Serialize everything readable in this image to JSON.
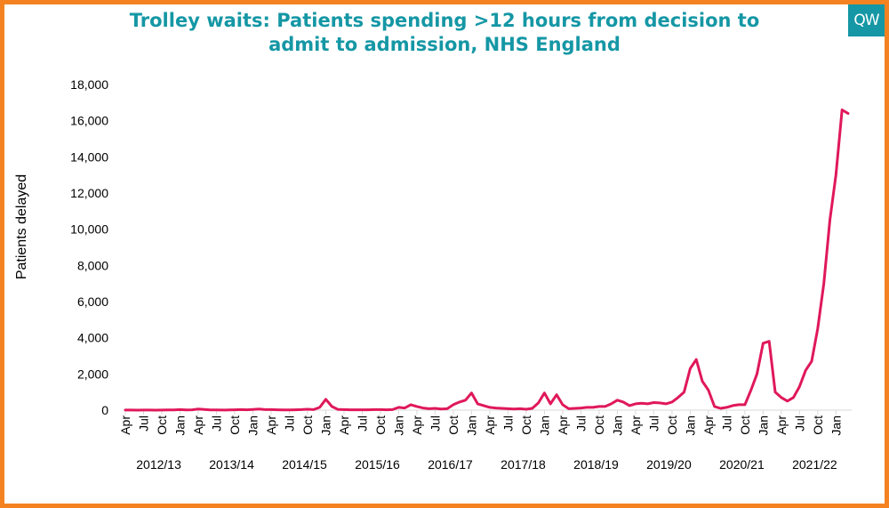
{
  "title_lines": [
    "Trolley waits: Patients spending >12 hours from decision to",
    "admit to admission, NHS England"
  ],
  "logo_text": "QW",
  "colors": {
    "frame": "#f58220",
    "title": "#1597a5",
    "line": "#e0185a",
    "logo_bg": "#1597a5"
  },
  "chart_data": {
    "type": "line",
    "title": "Trolley waits: Patients spending >12 hours from decision to admit to admission, NHS England",
    "ylabel": "Patients delayed",
    "xlabel": "",
    "ylim": [
      0,
      18000
    ],
    "yticks": [
      0,
      2000,
      4000,
      6000,
      8000,
      10000,
      12000,
      14000,
      16000,
      18000
    ],
    "ytick_labels": [
      "0",
      "2,000",
      "4,000",
      "6,000",
      "8,000",
      "10,000",
      "12,000",
      "14,000",
      "16,000",
      "18,000"
    ],
    "month_tick_labels": [
      "Apr",
      "Jul",
      "Oct",
      "Jan",
      "Apr",
      "Jul",
      "Oct",
      "Jan",
      "Apr",
      "Jul",
      "Oct",
      "Jan",
      "Apr",
      "Jul",
      "Oct",
      "Jan",
      "Apr",
      "Jul",
      "Oct",
      "Jan",
      "Apr",
      "Jul",
      "Oct",
      "Jan",
      "Apr",
      "Jul",
      "Oct",
      "Jan",
      "Apr",
      "Jul",
      "Oct",
      "Jan",
      "Apr",
      "Jul",
      "Oct",
      "Jan",
      "Apr",
      "Jul",
      "Oct",
      "Jan"
    ],
    "year_labels": [
      "2012/13",
      "2013/14",
      "2014/15",
      "2015/16",
      "2016/17",
      "2017/18",
      "2018/19",
      "2019/20",
      "2020/21",
      "2021/22"
    ],
    "grid": false,
    "legend": "none",
    "series": [
      {
        "name": "Patients delayed",
        "start": "Apr 2012",
        "frequency": "monthly",
        "values": [
          5,
          3,
          2,
          3,
          5,
          2,
          5,
          10,
          15,
          30,
          10,
          20,
          60,
          40,
          10,
          8,
          5,
          10,
          20,
          30,
          20,
          40,
          60,
          30,
          30,
          20,
          10,
          10,
          20,
          30,
          50,
          30,
          150,
          600,
          200,
          40,
          30,
          20,
          20,
          20,
          20,
          30,
          30,
          20,
          30,
          150,
          120,
          300,
          200,
          120,
          80,
          100,
          60,
          80,
          300,
          450,
          550,
          950,
          350,
          250,
          150,
          120,
          100,
          80,
          60,
          80,
          50,
          100,
          400,
          950,
          350,
          850,
          300,
          80,
          100,
          120,
          150,
          150,
          200,
          200,
          350,
          550,
          450,
          250,
          350,
          380,
          350,
          420,
          400,
          350,
          450,
          700,
          1000,
          2300,
          2800,
          1600,
          1100,
          200,
          100,
          150,
          250,
          300,
          300,
          1100,
          2000,
          3700,
          3800,
          1000,
          700,
          500,
          700,
          1300,
          2200,
          2700,
          4500,
          7000,
          10500,
          13000,
          16600,
          16400
        ]
      }
    ]
  }
}
